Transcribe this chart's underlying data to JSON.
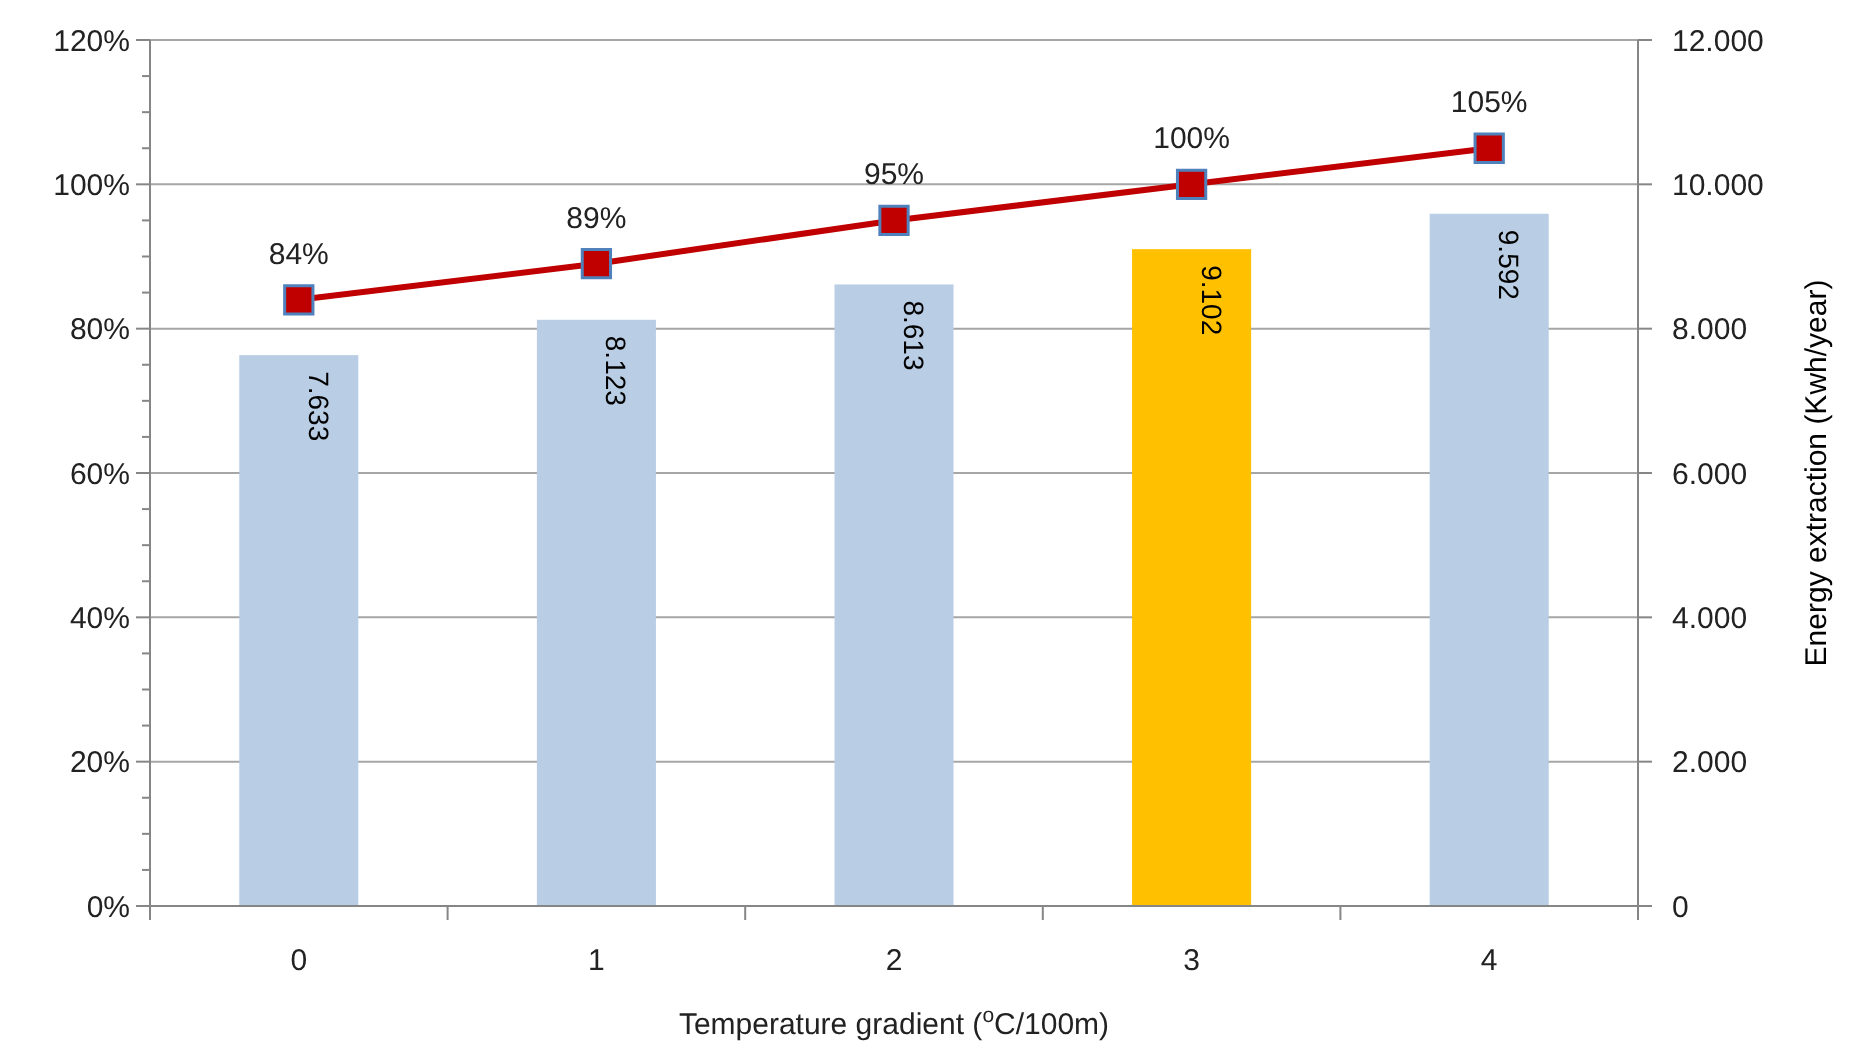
{
  "chart_data": {
    "type": "bar",
    "categories": [
      "0",
      "1",
      "2",
      "3",
      "4"
    ],
    "xlabel": "Temperature gradient ($^{o}$C/100m)",
    "y2label": "Energy extraction (Kwh/year)",
    "series": [
      {
        "axis": "y2",
        "colors": [
          "#b9cde5",
          "#b9cde5",
          "#b9cde5",
          "#ffc000",
          "#b9cde5"
        ],
        "values": [
          7633,
          8123,
          8613,
          9102,
          9592
        ],
        "value_labels": [
          "7.633",
          "8.123",
          "8.613",
          "9.102",
          "9.592"
        ]
      },
      {
        "type": "line",
        "axis": "y",
        "color": "#c00000",
        "marker": "square",
        "values": [
          84,
          89,
          95,
          100,
          105
        ],
        "value_labels": [
          "84%",
          "89%",
          "95%",
          "100%",
          "105%"
        ]
      }
    ],
    "ylim": [
      0,
      120
    ],
    "yticks": [
      {
        "value": 0,
        "label": "0%"
      },
      {
        "value": 5,
        "label": null
      },
      {
        "value": 10,
        "label": null
      },
      {
        "value": 15,
        "label": null
      },
      {
        "value": 20,
        "label": "20%"
      },
      {
        "value": 25,
        "label": null
      },
      {
        "value": 30,
        "label": null
      },
      {
        "value": 35,
        "label": null
      },
      {
        "value": 40,
        "label": "40%"
      },
      {
        "value": 45,
        "label": null
      },
      {
        "value": 50,
        "label": null
      },
      {
        "value": 55,
        "label": null
      },
      {
        "value": 60,
        "label": "60%"
      },
      {
        "value": 65,
        "label": null
      },
      {
        "value": 70,
        "label": null
      },
      {
        "value": 75,
        "label": null
      },
      {
        "value": 80,
        "label": "80%"
      },
      {
        "value": 85,
        "label": null
      },
      {
        "value": 90,
        "label": null
      },
      {
        "value": 95,
        "label": null
      },
      {
        "value": 100,
        "label": "100%"
      },
      {
        "value": 105,
        "label": null
      },
      {
        "value": 110,
        "label": null
      },
      {
        "value": 115,
        "label": null
      },
      {
        "value": 120,
        "label": "120%"
      }
    ],
    "y2lim": [
      0,
      12000
    ],
    "y2ticks": [
      0,
      {
        "value": 2000,
        "label": "2.000"
      },
      {
        "value": 4000,
        "label": "4.000"
      },
      {
        "value": 6000,
        "label": "6.000"
      },
      {
        "value": 8000,
        "label": "8.000"
      },
      {
        "value": 10000,
        "label": "10.000"
      },
      {
        "value": 12000,
        "label": "12.000"
      }
    ],
    "grid": "y2"
  }
}
